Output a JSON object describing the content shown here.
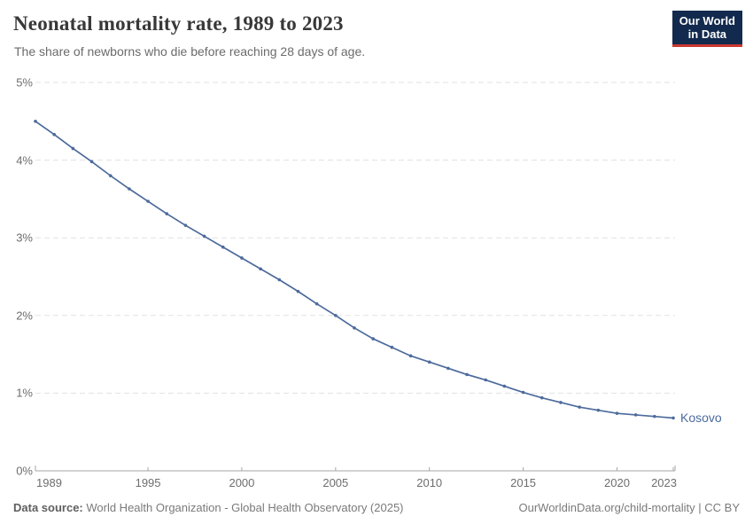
{
  "header": {
    "title": "Neonatal mortality rate, 1989 to 2023",
    "subtitle": "The share of newborns who die before reaching 28 days of age.",
    "logo": {
      "line1": "Our World",
      "line2": "in Data"
    }
  },
  "chart_data": {
    "type": "line",
    "title": "Neonatal mortality rate, 1989 to 2023",
    "unit": "%",
    "xlim": [
      1989,
      2023
    ],
    "ylim": [
      0,
      5
    ],
    "grid": "horizontal-dashed",
    "legend_position": "end-of-line-label",
    "x_ticks": [
      1989,
      1995,
      2000,
      2005,
      2010,
      2015,
      2020,
      2023
    ],
    "y_ticks": [
      0,
      1,
      2,
      3,
      4,
      5
    ],
    "y_tick_labels": [
      "0%",
      "1%",
      "2%",
      "3%",
      "4%",
      "5%"
    ],
    "x": [
      1989,
      1990,
      1991,
      1992,
      1993,
      1994,
      1995,
      1996,
      1997,
      1998,
      1999,
      2000,
      2001,
      2002,
      2003,
      2004,
      2005,
      2006,
      2007,
      2008,
      2009,
      2010,
      2011,
      2012,
      2013,
      2014,
      2015,
      2016,
      2017,
      2018,
      2019,
      2020,
      2021,
      2022,
      2023
    ],
    "series": [
      {
        "name": "Kosovo",
        "color": "#4c6a9c",
        "values": [
          4.5,
          4.33,
          4.15,
          3.98,
          3.8,
          3.63,
          3.47,
          3.31,
          3.16,
          3.02,
          2.88,
          2.74,
          2.6,
          2.46,
          2.31,
          2.15,
          2.0,
          1.84,
          1.7,
          1.59,
          1.48,
          1.4,
          1.32,
          1.24,
          1.17,
          1.09,
          1.01,
          0.94,
          0.88,
          0.82,
          0.78,
          0.74,
          0.72,
          0.7,
          0.68
        ]
      }
    ]
  },
  "footer": {
    "source_label": "Data source:",
    "source_text": " World Health Organization - Global Health Observatory (2025)",
    "link_text": "OurWorldinData.org/child-mortality | CC BY"
  },
  "colors": {
    "line": "#4c6a9c",
    "grid": "#e1e1e1",
    "axis": "#a6a6a6",
    "tick_label": "#6e6e6e",
    "logo_bg": "#122a4d",
    "logo_stripe": "#cb3831"
  }
}
